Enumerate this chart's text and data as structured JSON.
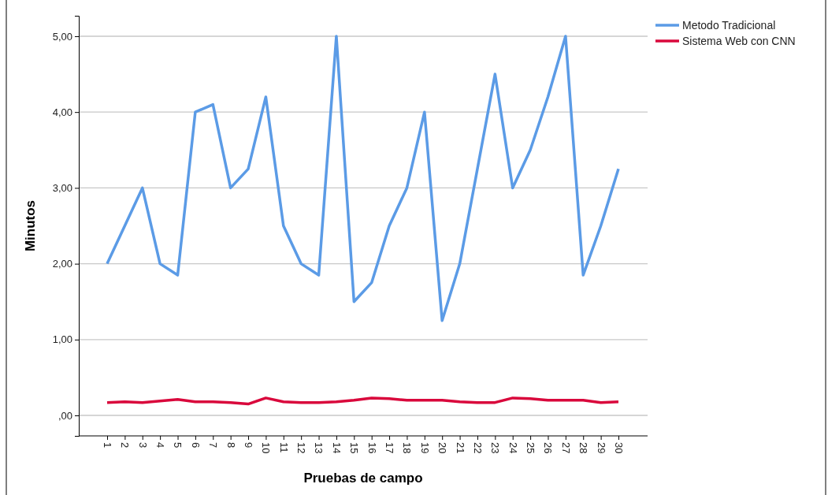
{
  "chart_data": {
    "type": "line",
    "xlabel": "Pruebas de campo",
    "ylabel": "Minutos",
    "categories": [
      "1",
      "2",
      "3",
      "4",
      "5",
      "6",
      "7",
      "8",
      "9",
      "10",
      "11",
      "12",
      "13",
      "14",
      "15",
      "16",
      "17",
      "18",
      "19",
      "20",
      "21",
      "22",
      "23",
      "24",
      "25",
      "26",
      "27",
      "28",
      "29",
      "30"
    ],
    "series": [
      {
        "name": "Metodo Tradicional",
        "color": "#5b9be6",
        "values": [
          2.0,
          2.5,
          3.0,
          2.0,
          1.85,
          4.0,
          4.1,
          3.0,
          3.25,
          4.2,
          2.5,
          2.0,
          1.85,
          5.0,
          1.5,
          1.75,
          2.5,
          3.0,
          4.0,
          1.25,
          2.0,
          3.25,
          4.5,
          3.0,
          3.5,
          4.2,
          5.0,
          1.85,
          2.5,
          3.25
        ]
      },
      {
        "name": "Sistema Web con CNN",
        "color": "#d9083c",
        "values": [
          0.17,
          0.18,
          0.17,
          0.19,
          0.21,
          0.18,
          0.18,
          0.17,
          0.15,
          0.23,
          0.18,
          0.17,
          0.17,
          0.18,
          0.2,
          0.23,
          0.22,
          0.2,
          0.2,
          0.2,
          0.18,
          0.17,
          0.17,
          0.23,
          0.22,
          0.2,
          0.2,
          0.2,
          0.17,
          0.18
        ]
      }
    ],
    "ylim": [
      -0.27,
      5.27
    ],
    "yticks": [
      {
        "value": 0,
        "label": ",00"
      },
      {
        "value": 1,
        "label": "1,00"
      },
      {
        "value": 2,
        "label": "2,00"
      },
      {
        "value": 3,
        "label": "3,00"
      },
      {
        "value": 4,
        "label": "4,00"
      },
      {
        "value": 5,
        "label": "5,00"
      }
    ],
    "grid": "y",
    "legend": "top right",
    "marker": "none",
    "line_style": "solid"
  }
}
